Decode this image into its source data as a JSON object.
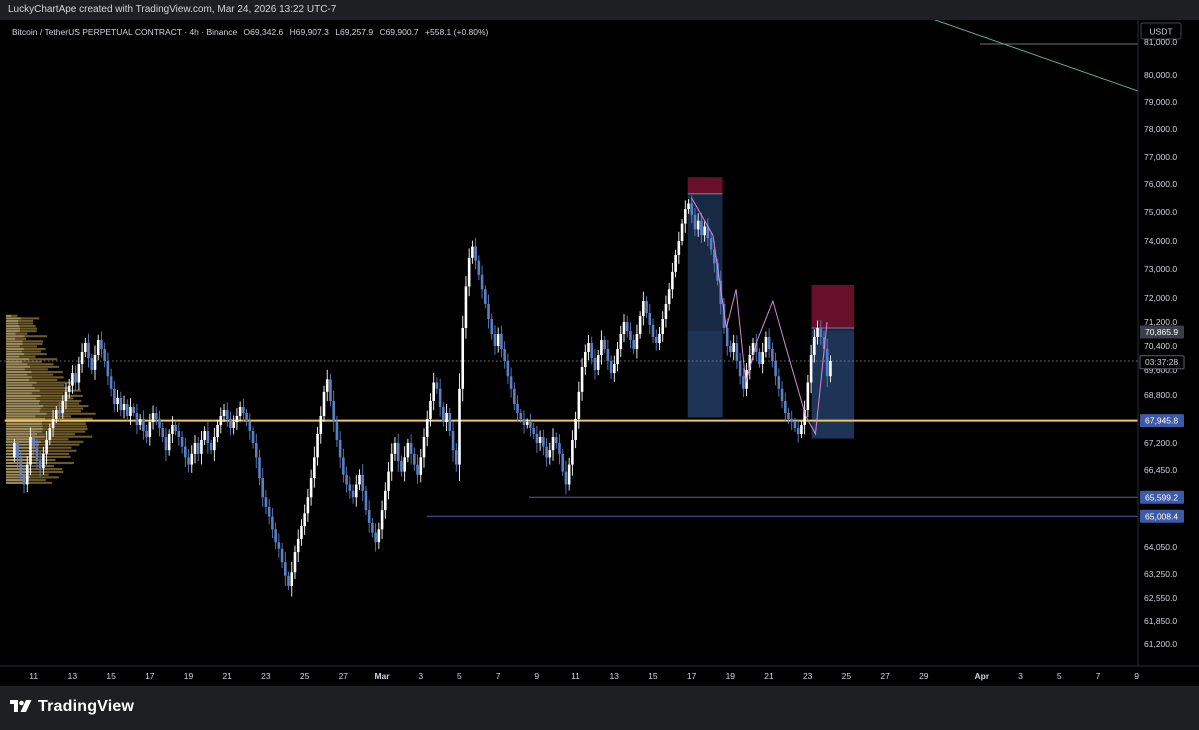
{
  "header": {
    "credit": "LuckyChartApe created with TradingView.com, Mar 24, 2026 13:22 UTC-7"
  },
  "legend": {
    "symbol": "Bitcoin / TetherUS PERPETUAL CONTRACT · 4h · Binance",
    "open": "O69,342.6",
    "high": "H69,907.3",
    "low": "L69,257.9",
    "close": "C69,900.7",
    "change": "+558.1 (+0.80%)"
  },
  "brand": {
    "name": "TradingView",
    "icon": "tradingview-logo-icon"
  },
  "colors": {
    "background": "#000000",
    "bull": "#ffffff",
    "bear": "#5b7fc4",
    "accent_line": "#f0c75e",
    "position_target": "#2a4a7a",
    "position_stop": "#7a1230",
    "projection": "#d58bd8",
    "trendline": "#5fb39a"
  },
  "chart_data": {
    "type": "candlestick",
    "currency": "USDT",
    "y_ticks": [
      81000,
      80000,
      79000,
      78000,
      77000,
      76000,
      75000,
      74000,
      73000,
      72000,
      71200,
      70400,
      69600,
      68800,
      67200,
      66450,
      64050,
      63250,
      62550,
      61850,
      61200
    ],
    "y_tick_labels": [
      "81,000.0",
      "80,000.0",
      "79,000.0",
      "78,000.0",
      "77,000.0",
      "76,000.0",
      "75,000.0",
      "74,000.0",
      "73,000.0",
      "72,000.0",
      "71,200.0",
      "70,400.0",
      "69,600.0",
      "68,800.0",
      "67,200.0",
      "66,450.0",
      "64,050.0",
      "63,250.0",
      "62,550.0",
      "61,850.0",
      "61,200.0"
    ],
    "x_tick_labels": [
      "11",
      "13",
      "15",
      "17",
      "19",
      "21",
      "23",
      "25",
      "27",
      "Mar",
      "3",
      "5",
      "7",
      "9",
      "11",
      "13",
      "15",
      "17",
      "19",
      "21",
      "23",
      "25",
      "27",
      "29",
      "Apr",
      "3",
      "5",
      "7",
      "9"
    ],
    "x_tick_days": [
      -18,
      -16,
      -14,
      -12,
      -10,
      -8,
      -6,
      -4,
      -2,
      0,
      2,
      4,
      6,
      8,
      10,
      12,
      14,
      16,
      18,
      20,
      22,
      24,
      26,
      28,
      31,
      33,
      35,
      37,
      39
    ],
    "price_tags": [
      {
        "label": "70,865.9",
        "price": 70865.9,
        "style": "gray"
      },
      {
        "label": "03:37:28",
        "price": 69860,
        "style": "timer"
      },
      {
        "label": "67,945.8",
        "price": 67945.8,
        "style": "blue"
      },
      {
        "label": "65,599.2",
        "price": 65599.2,
        "style": "blue"
      },
      {
        "label": "65,008.4",
        "price": 65008.4,
        "style": "blue"
      }
    ],
    "horizontal_levels": [
      {
        "price": 67945.8,
        "color": "accent",
        "start_day": -19.5
      },
      {
        "price": 65599.2,
        "color": "blue",
        "start_day": 7.6
      },
      {
        "price": 65008.4,
        "color": "blue",
        "start_day": 2.3
      }
    ],
    "current_price": 69900.7,
    "positions": [
      {
        "start_day": 15.8,
        "end_day": 17.6,
        "entry": 75650,
        "stop": 76250,
        "target": 68050,
        "filled_to": 70900
      },
      {
        "start_day": 22.2,
        "end_day": 24.4,
        "entry": 71000,
        "stop": 72450,
        "target": 67350,
        "filled_to": 70900
      }
    ],
    "projection_path": [
      [
        16.0,
        75500
      ],
      [
        17.1,
        74200
      ],
      [
        17.8,
        71000
      ],
      [
        18.3,
        72300
      ],
      [
        18.8,
        69200
      ],
      [
        19.4,
        70600
      ],
      [
        20.2,
        71900
      ],
      [
        20.9,
        70300
      ],
      [
        21.9,
        68100
      ],
      [
        22.4,
        67500
      ],
      [
        23.0,
        71200
      ]
    ],
    "trendline": [
      [
        26.0,
        82200
      ],
      [
        39.5,
        79300
      ]
    ],
    "candles_4h": {
      "start_day": -19.0,
      "interval_days": 0.1667,
      "open": 66800,
      "closes": [
        67200,
        66800,
        66300,
        66000,
        66600,
        67400,
        67100,
        66700,
        66500,
        66900,
        67300,
        67700,
        68000,
        68300,
        68200,
        68600,
        68900,
        69100,
        69500,
        69200,
        69800,
        70200,
        70500,
        70000,
        69600,
        70100,
        70600,
        70300,
        69900,
        69400,
        69000,
        68500,
        68700,
        68300,
        68500,
        68100,
        68400,
        68200,
        67800,
        68000,
        67600,
        67400,
        67900,
        68200,
        68000,
        67700,
        67400,
        67000,
        67500,
        67800,
        67600,
        67400,
        67100,
        66800,
        66600,
        66900,
        67200,
        66900,
        67300,
        67600,
        67200,
        67000,
        67400,
        67800,
        68100,
        68300,
        68000,
        67700,
        67900,
        68100,
        68400,
        68200,
        67900,
        67600,
        67200,
        66800,
        66200,
        65600,
        65300,
        65000,
        64600,
        64200,
        64000,
        63600,
        63200,
        62900,
        63300,
        63900,
        64300,
        64700,
        65100,
        65600,
        66200,
        66800,
        67500,
        68100,
        68900,
        69300,
        68600,
        67900,
        67300,
        66800,
        66300,
        66000,
        65800,
        65600,
        66000,
        66300,
        65800,
        65200,
        64800,
        64500,
        64200,
        64600,
        65200,
        65800,
        66400,
        66900,
        67200,
        66700,
        66400,
        66800,
        67200,
        66900,
        66600,
        66300,
        66800,
        67400,
        68000,
        68600,
        69200,
        69000,
        68400,
        67900,
        68200,
        67600,
        67000,
        66600,
        69000,
        71000,
        72400,
        73400,
        73800,
        73300,
        72800,
        72300,
        71800,
        71300,
        70800,
        70400,
        70800,
        70300,
        69900,
        69400,
        69000,
        68500,
        68200,
        68000,
        67800,
        67900,
        67700,
        67500,
        67200,
        67400,
        67100,
        66800,
        67000,
        67400,
        67200,
        66900,
        66400,
        66000,
        66600,
        67300,
        68000,
        68900,
        69700,
        70200,
        70500,
        70000,
        69600,
        70100,
        70600,
        70300,
        69900,
        69500,
        69800,
        70300,
        70800,
        71200,
        70900,
        70600,
        70300,
        70800,
        71400,
        71900,
        71500,
        71100,
        70700,
        70500,
        70800,
        71300,
        71800,
        72300,
        72900,
        73500,
        74000,
        74600,
        75100,
        75300,
        74900,
        74400,
        74700,
        74200,
        74500,
        74100,
        73700,
        73200,
        72600,
        71800,
        71000,
        70400,
        70200,
        70500,
        69900,
        69400,
        69000,
        69600,
        70100,
        70500,
        70200,
        69800,
        70200,
        70700,
        70300,
        69900,
        69400,
        69000,
        68600,
        68200,
        68000,
        67900,
        67700,
        67500,
        67800,
        68300,
        69200,
        70100,
        70700,
        71000,
        70700,
        70300,
        69400,
        69900
      ]
    }
  }
}
